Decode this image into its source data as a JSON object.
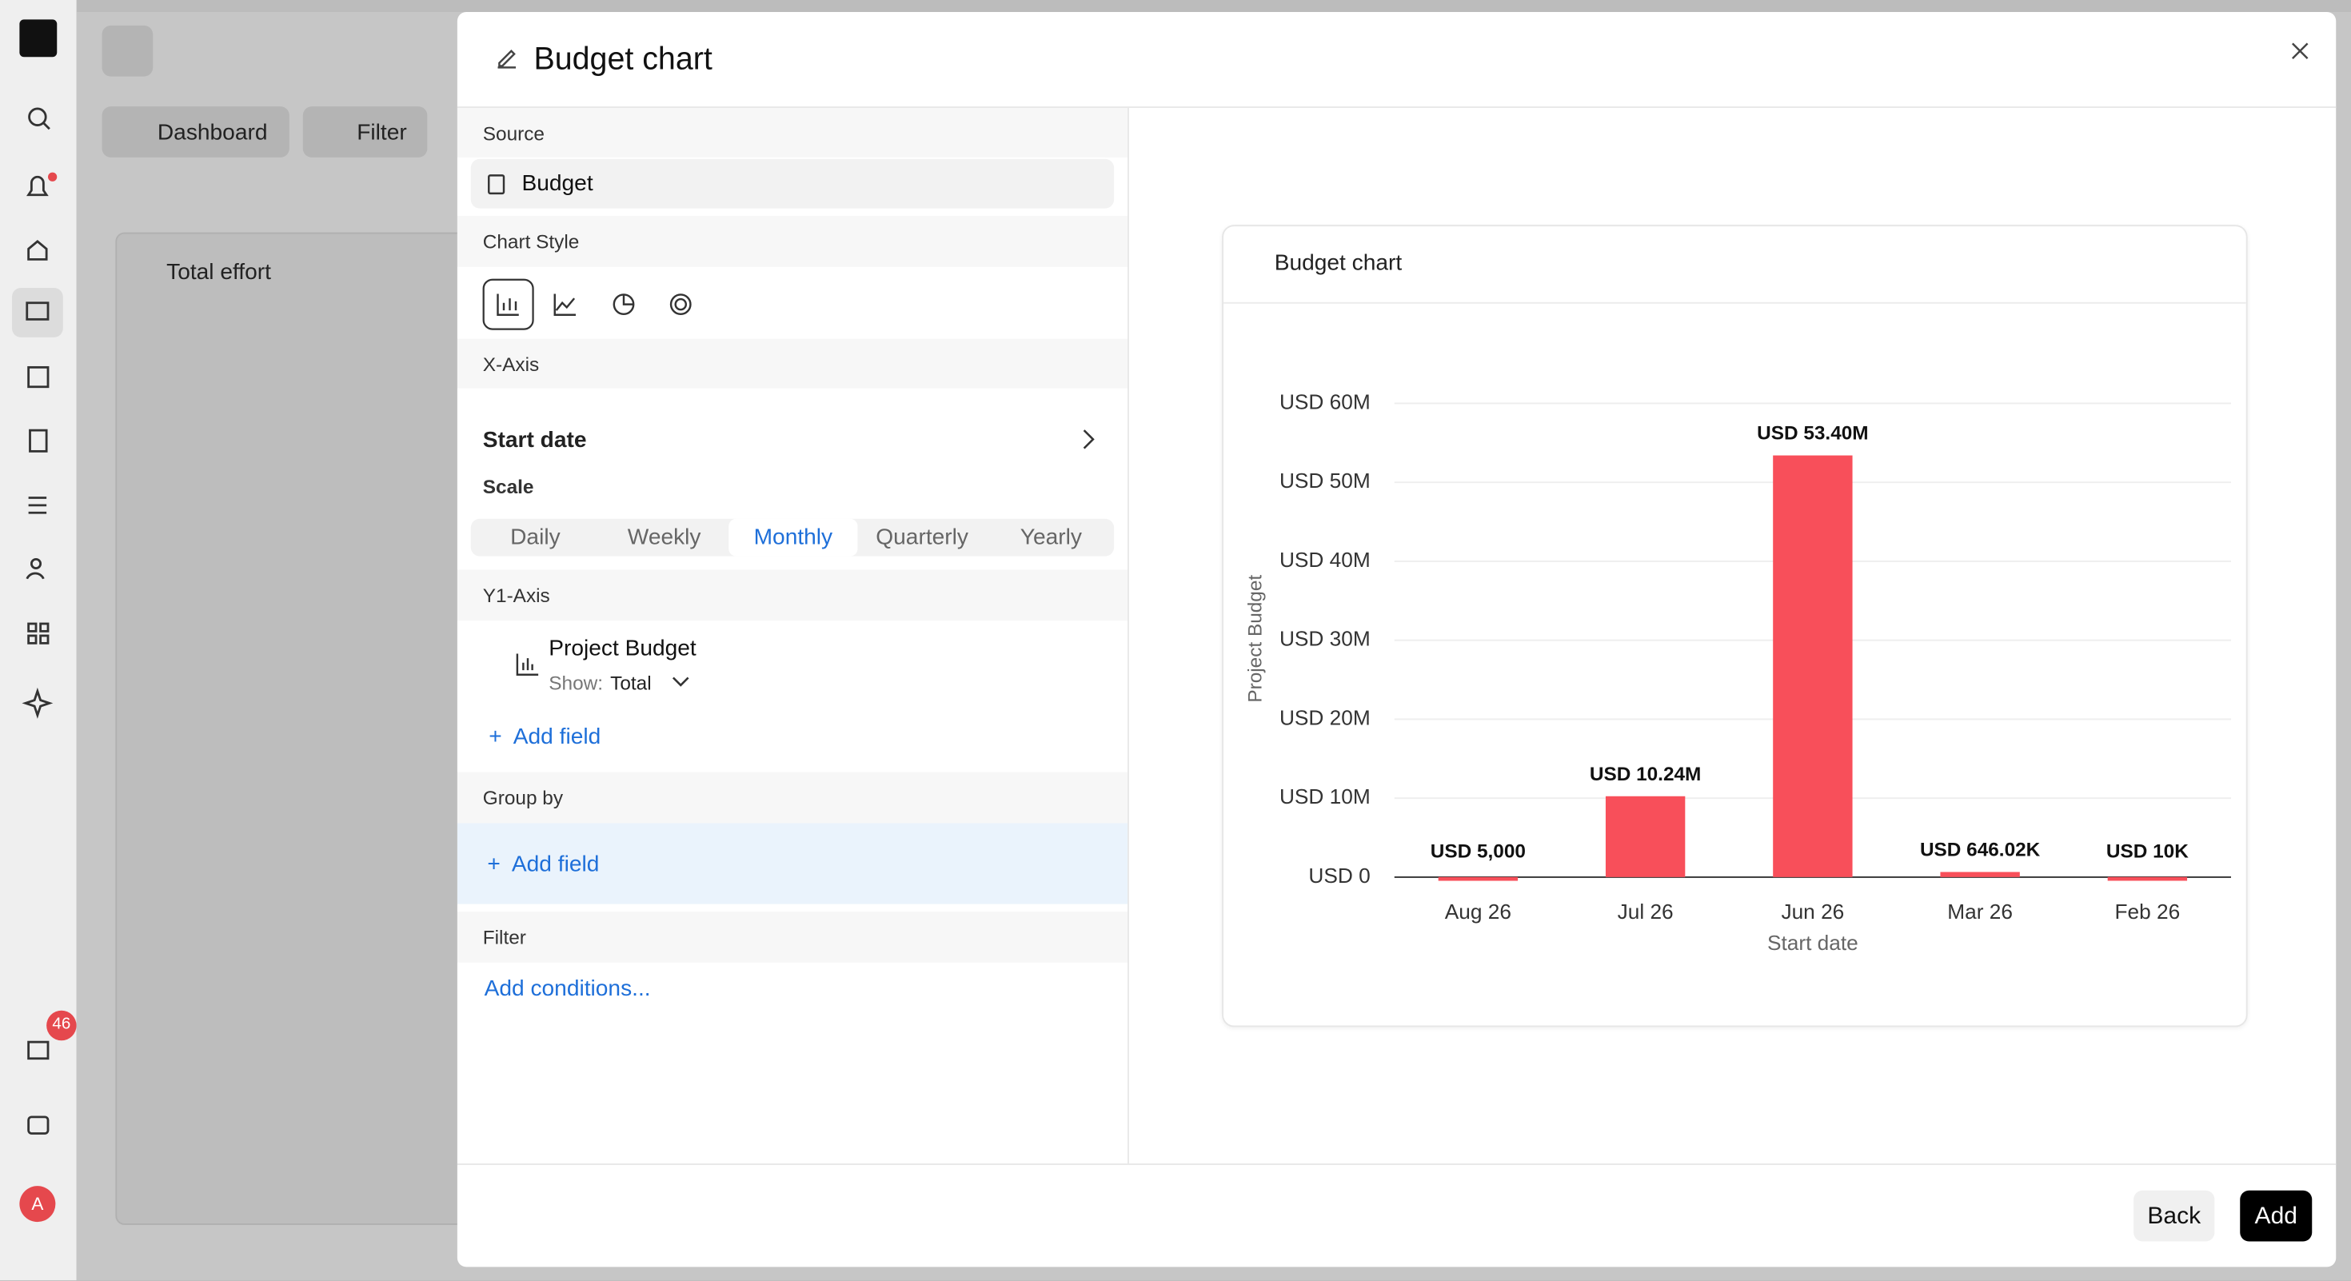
{
  "toolbar": {
    "dashboard": "Dashboard",
    "filter": "Filter"
  },
  "background_card": {
    "title": "Total effort"
  },
  "sidebar": {
    "badge": "46",
    "avatar": "A"
  },
  "dialog": {
    "title": "Budget chart",
    "source": {
      "label": "Source",
      "value": "Budget"
    },
    "chart_style": {
      "label": "Chart Style"
    },
    "x_axis": {
      "label": "X-Axis",
      "field": "Start date",
      "scale_label": "Scale",
      "scale_options": [
        "Daily",
        "Weekly",
        "Monthly",
        "Quarterly",
        "Yearly"
      ],
      "selected": "Monthly"
    },
    "y1_axis": {
      "label": "Y1-Axis",
      "field": "Project Budget",
      "show_label": "Show:",
      "show_value": "Total",
      "add": "Add field"
    },
    "group_by": {
      "label": "Group by",
      "add": "Add field"
    },
    "filter": {
      "label": "Filter",
      "add": "Add conditions..."
    },
    "buttons": {
      "back": "Back",
      "add": "Add"
    }
  },
  "chart_data": {
    "type": "bar",
    "title": "Budget chart",
    "y_label": "Project Budget",
    "x_label": "Start date",
    "categories": [
      "Aug 26",
      "Jul 26",
      "Jun 26",
      "Mar 26",
      "Feb 26"
    ],
    "values": [
      5000,
      10240000,
      53400000,
      646020,
      10000
    ],
    "value_labels": [
      "USD 5,000",
      "USD 10.24M",
      "USD 53.40M",
      "USD 646.02K",
      "USD 10K"
    ],
    "color": "#f84f5a",
    "ylim": [
      0,
      60000000
    ],
    "yticks": [
      {
        "value": 0,
        "label": "USD 0"
      },
      {
        "value": 10000000,
        "label": "USD 10M"
      },
      {
        "value": 20000000,
        "label": "USD 20M"
      },
      {
        "value": 30000000,
        "label": "USD 30M"
      },
      {
        "value": 40000000,
        "label": "USD 40M"
      },
      {
        "value": 50000000,
        "label": "USD 50M"
      },
      {
        "value": 60000000,
        "label": "USD 60M"
      }
    ],
    "grid": true
  }
}
